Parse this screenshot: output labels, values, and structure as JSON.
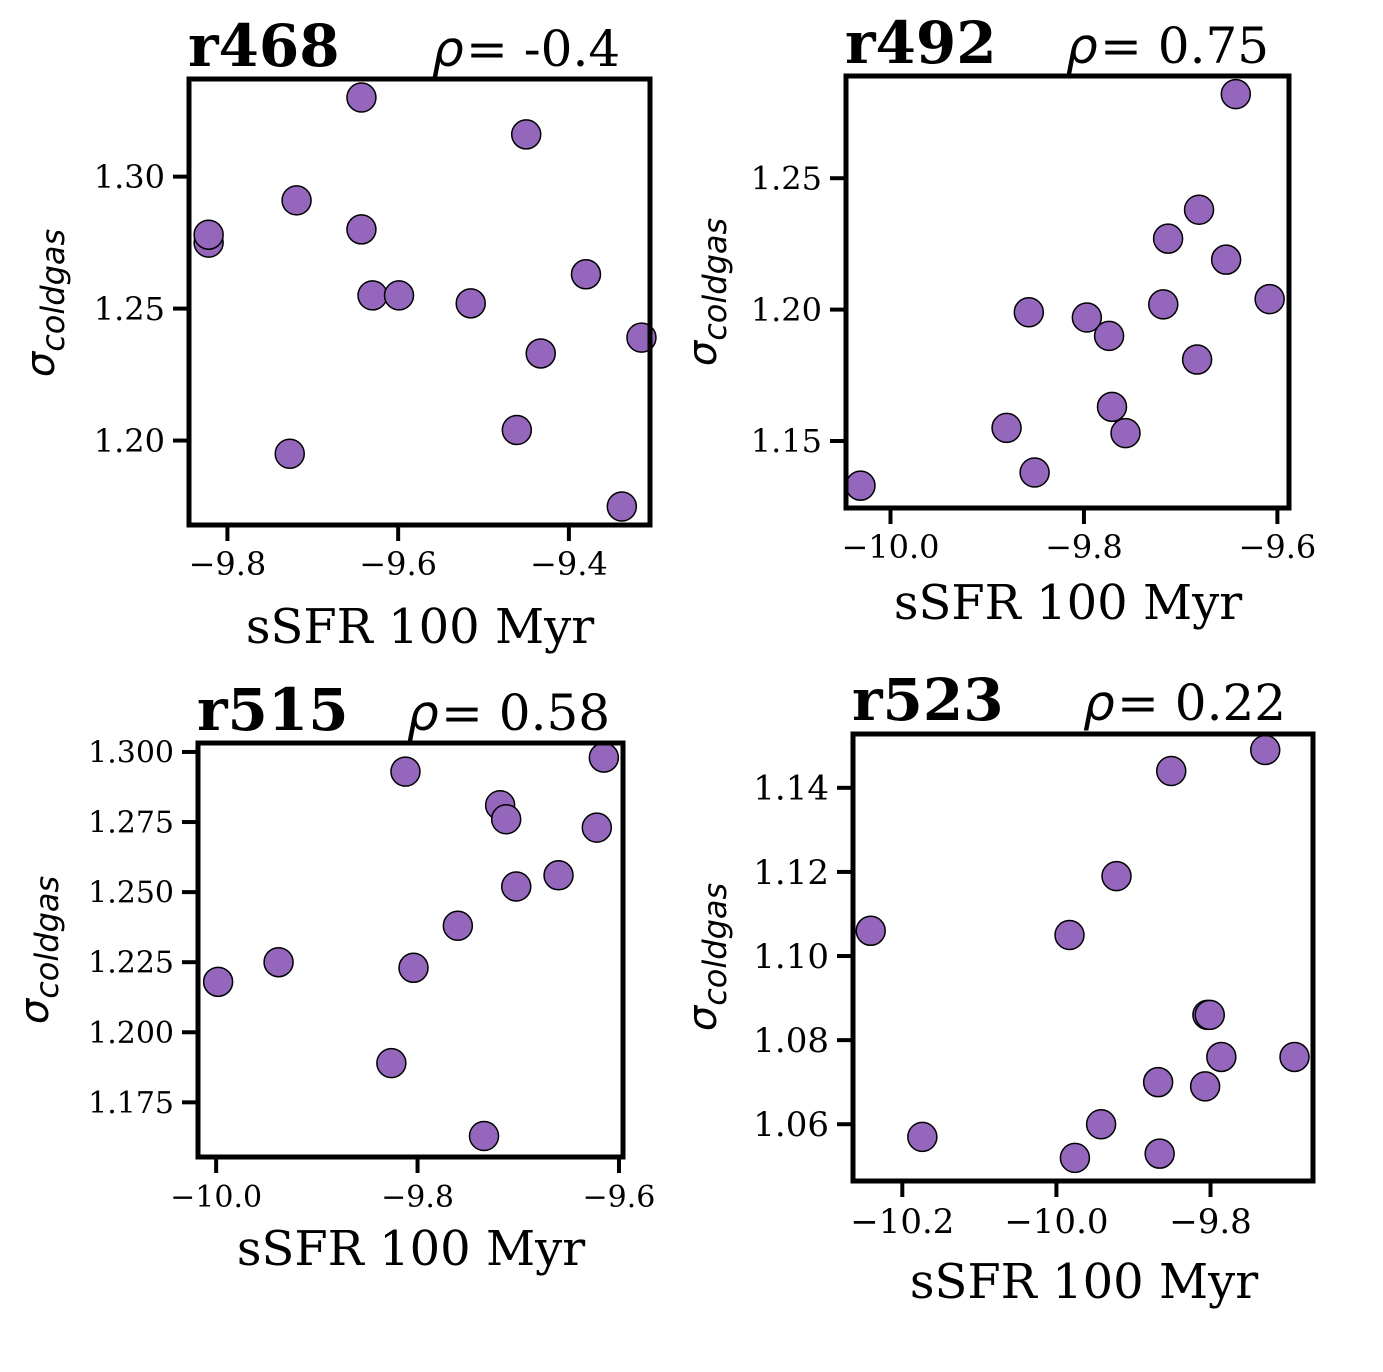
{
  "figure": {
    "point_color": "#9467bd",
    "point_edge_color": "#000000"
  },
  "chart_data": [
    {
      "type": "scatter",
      "title": "r468",
      "rho_label": "ρ",
      "rho_value": "= -0.4",
      "xlabel": "sSFR 100 Myr",
      "ylabel_main": "σ",
      "ylabel_sub": "coldgas",
      "xlim": [
        -9.845,
        -9.305
      ],
      "ylim": [
        1.168,
        1.337
      ],
      "xticks": [
        -9.8,
        -9.6,
        -9.4
      ],
      "xtick_labels": [
        "−9.8",
        "−9.6",
        "−9.4"
      ],
      "yticks": [
        1.2,
        1.25,
        1.3
      ],
      "ytick_labels": [
        "1.20",
        "1.25",
        "1.30"
      ],
      "points": [
        [
          -9.822,
          1.275
        ],
        [
          -9.822,
          1.278
        ],
        [
          -9.719,
          1.291
        ],
        [
          -9.727,
          1.195
        ],
        [
          -9.643,
          1.33
        ],
        [
          -9.643,
          1.28
        ],
        [
          -9.63,
          1.255
        ],
        [
          -9.599,
          1.255
        ],
        [
          -9.515,
          1.252
        ],
        [
          -9.45,
          1.316
        ],
        [
          -9.461,
          1.204
        ],
        [
          -9.433,
          1.233
        ],
        [
          -9.38,
          1.263
        ],
        [
          -9.338,
          1.175
        ],
        [
          -9.315,
          1.239
        ]
      ]
    },
    {
      "type": "scatter",
      "title": "r492",
      "rho_label": "ρ",
      "rho_value": "= 0.75",
      "xlabel": "sSFR 100 Myr",
      "ylabel_main": "σ",
      "ylabel_sub": "coldgas",
      "xlim": [
        -10.046,
        -9.588
      ],
      "ylim": [
        1.1245,
        1.2889
      ],
      "xticks": [
        -10.0,
        -9.8,
        -9.6
      ],
      "xtick_labels": [
        "−10.0",
        "−9.8",
        "−9.6"
      ],
      "yticks": [
        1.15,
        1.2,
        1.25
      ],
      "ytick_labels": [
        "1.15",
        "1.20",
        "1.25"
      ],
      "points": [
        [
          -10.031,
          1.133
        ],
        [
          -9.88,
          1.155
        ],
        [
          -9.851,
          1.138
        ],
        [
          -9.857,
          1.199
        ],
        [
          -9.797,
          1.197
        ],
        [
          -9.771,
          1.163
        ],
        [
          -9.774,
          1.19
        ],
        [
          -9.757,
          1.153
        ],
        [
          -9.718,
          1.202
        ],
        [
          -9.713,
          1.227
        ],
        [
          -9.681,
          1.238
        ],
        [
          -9.683,
          1.181
        ],
        [
          -9.653,
          1.219
        ],
        [
          -9.643,
          1.282
        ],
        [
          -9.608,
          1.204
        ]
      ]
    },
    {
      "type": "scatter",
      "title": "r515",
      "rho_label": "ρ",
      "rho_value": "= 0.58",
      "xlabel": "sSFR 100 Myr",
      "ylabel_main": "σ",
      "ylabel_sub": "coldgas",
      "xlim": [
        -10.018,
        -9.596
      ],
      "ylim": [
        1.1555,
        1.3032
      ],
      "xticks": [
        -10.0,
        -9.8,
        -9.6
      ],
      "xtick_labels": [
        "−10.0",
        "−9.8",
        "−9.6"
      ],
      "yticks": [
        1.175,
        1.2,
        1.225,
        1.25,
        1.275,
        1.3
      ],
      "ytick_labels": [
        "1.175",
        "1.200",
        "1.225",
        "1.250",
        "1.275",
        "1.300"
      ],
      "points": [
        [
          -9.998,
          1.218
        ],
        [
          -9.938,
          1.225
        ],
        [
          -9.826,
          1.189
        ],
        [
          -9.812,
          1.293
        ],
        [
          -9.804,
          1.223
        ],
        [
          -9.76,
          1.238
        ],
        [
          -9.734,
          1.163
        ],
        [
          -9.718,
          1.281
        ],
        [
          -9.712,
          1.276
        ],
        [
          -9.702,
          1.252
        ],
        [
          -9.66,
          1.256
        ],
        [
          -9.622,
          1.273
        ],
        [
          -9.615,
          1.298
        ]
      ]
    },
    {
      "type": "scatter",
      "title": "r523",
      "rho_label": "ρ",
      "rho_value": "= 0.22",
      "xlabel": "sSFR 100 Myr",
      "ylabel_main": "σ",
      "ylabel_sub": "coldgas",
      "xlim": [
        -10.264,
        -9.667
      ],
      "ylim": [
        1.0465,
        1.1528
      ],
      "xticks": [
        -10.2,
        -10.0,
        -9.8
      ],
      "xtick_labels": [
        "−10.2",
        "−10.0",
        "−9.8"
      ],
      "yticks": [
        1.06,
        1.08,
        1.1,
        1.12,
        1.14
      ],
      "ytick_labels": [
        "1.06",
        "1.08",
        "1.10",
        "1.12",
        "1.14"
      ],
      "points": [
        [
          -10.241,
          1.106
        ],
        [
          -10.174,
          1.057
        ],
        [
          -9.983,
          1.105
        ],
        [
          -9.976,
          1.052
        ],
        [
          -9.942,
          1.06
        ],
        [
          -9.922,
          1.119
        ],
        [
          -9.868,
          1.07
        ],
        [
          -9.866,
          1.053
        ],
        [
          -9.851,
          1.144
        ],
        [
          -9.807,
          1.069
        ],
        [
          -9.804,
          1.086
        ],
        [
          -9.801,
          1.086
        ],
        [
          -9.786,
          1.076
        ],
        [
          -9.729,
          1.149
        ],
        [
          -9.691,
          1.076
        ]
      ]
    }
  ]
}
